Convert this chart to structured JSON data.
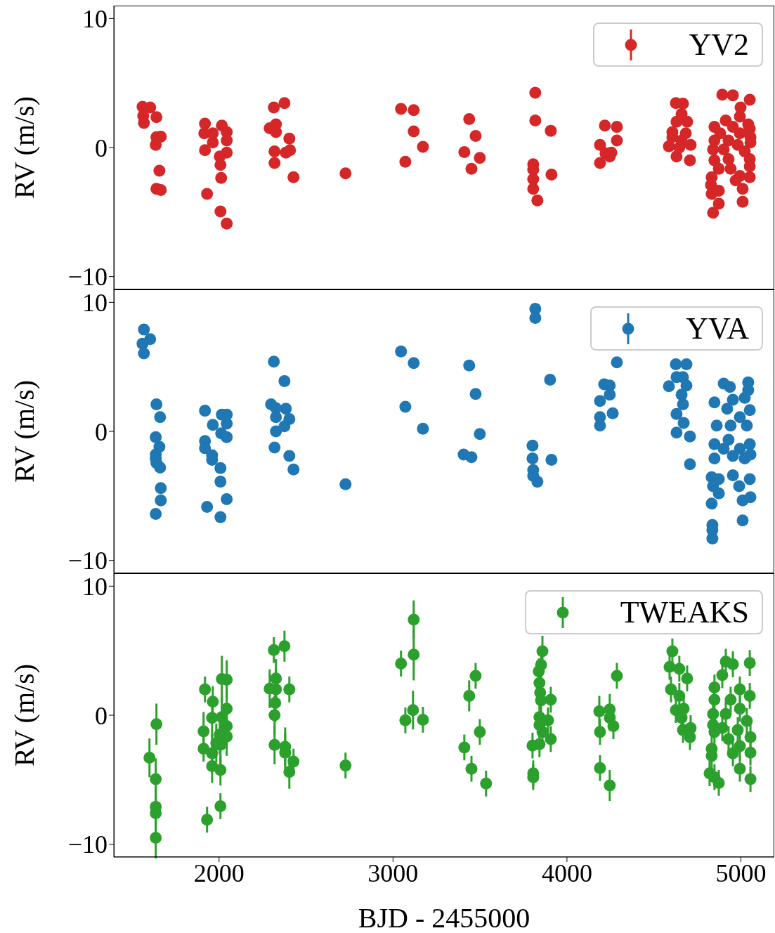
{
  "chart_data": [
    {
      "type": "scatter",
      "ylabel": "RV (m/s)",
      "xlim": [
        1395,
        5192
      ],
      "xticks": [
        2000,
        3000,
        4000,
        5000
      ],
      "ylim": [
        -11,
        11
      ],
      "yticks": [
        -10,
        0,
        10
      ],
      "tick_labels": "y",
      "legend": "top right",
      "marker": "circle",
      "series": [
        {
          "name": "YV2",
          "color": "#d62728",
          "x": [
            1560,
            1604,
            1564,
            1568,
            1640,
            1640,
            1665,
            1636,
            1657,
            1640,
            1665,
            1919,
            1915,
            1919,
            1964,
            1964,
            2016,
            2044,
            2044,
            2044,
            2004,
            2008,
            2012,
            1931,
            2008,
            2044,
            2315,
            2376,
            2327,
            2291,
            2327,
            2404,
            2319,
            2384,
            2408,
            2319,
            2428,
            2727,
            3046,
            3119,
            3119,
            3172,
            3071,
            3438,
            3475,
            3410,
            3499,
            3451,
            3818,
            3818,
            3907,
            3806,
            3806,
            3806,
            3806,
            3830,
            3911,
            4218,
            4287,
            4287,
            4190,
            4255,
            4222,
            4246,
            4190,
            4626,
            4667,
            4659,
            4630,
            4691,
            4606,
            4683,
            4606,
            4659,
            4586,
            4711,
            4646,
            4630,
            4707,
            4893,
            4954,
            5051,
            4998,
            4994,
            4913,
            4848,
            5042,
            4954,
            5051,
            5055,
            4881,
            4994,
            4848,
            4929,
            5055,
            4982,
            4840,
            4901,
            5022,
            4848,
            4929,
            5051,
            4873,
            4941,
            5051,
            4832,
            4994,
            5051,
            4828,
            4970,
            4873,
            5010,
            4832,
            4873,
            5010,
            4840
          ],
          "values": [
            3.16,
            3.1,
            2.45,
            1.9,
            2.35,
            0.8,
            0.85,
            0.2,
            -1.8,
            -3.2,
            -3.3,
            1.85,
            1.1,
            -0.2,
            1.1,
            0.4,
            1.7,
            1.2,
            0.55,
            -0.4,
            -0.7,
            -1.35,
            -2.35,
            -3.6,
            -4.95,
            -5.9,
            3.1,
            3.45,
            1.8,
            1.5,
            1.2,
            0.7,
            -0.3,
            -0.4,
            -0.2,
            -1.2,
            -2.3,
            -2.0,
            3.0,
            2.9,
            1.25,
            0.05,
            -1.1,
            2.2,
            0.9,
            -0.35,
            -0.8,
            -1.65,
            4.25,
            2.1,
            1.3,
            -1.3,
            -1.7,
            -2.45,
            -3.2,
            -4.1,
            -2.1,
            1.7,
            1.6,
            0.55,
            0.2,
            -0.4,
            -0.45,
            -0.7,
            -1.2,
            3.45,
            3.4,
            2.6,
            2.0,
            2.0,
            1.2,
            1.1,
            0.8,
            0.55,
            0.1,
            0.2,
            0.0,
            -0.7,
            -1.0,
            4.1,
            4.05,
            3.7,
            3.1,
            2.4,
            2.1,
            1.6,
            1.8,
            1.6,
            1.45,
            0.8,
            1.1,
            1.1,
            0.55,
            0.55,
            0.4,
            0.2,
            -0.15,
            -0.15,
            -0.3,
            -1.0,
            -0.9,
            -0.9,
            -1.65,
            -1.65,
            -1.45,
            -2.3,
            -2.2,
            -2.3,
            -2.9,
            -2.55,
            -3.35,
            -3.2,
            -3.6,
            -4.35,
            -4.2,
            -5.05
          ]
        }
      ]
    },
    {
      "type": "scatter",
      "ylabel": "RV (m/s)",
      "xlim": [
        1395,
        5192
      ],
      "xticks": [
        2000,
        3000,
        4000,
        5000
      ],
      "ylim": [
        -11,
        11
      ],
      "yticks": [
        -10,
        0,
        10
      ],
      "tick_labels": "y",
      "legend": "top right",
      "marker": "circle",
      "series": [
        {
          "name": "YVA",
          "color": "#1f77b4",
          "x": [
            1568,
            1604,
            1560,
            1568,
            1640,
            1661,
            1636,
            1657,
            1636,
            1636,
            1640,
            1661,
            1665,
            1665,
            1636,
            1919,
            1964,
            2016,
            2044,
            2044,
            2012,
            2044,
            1919,
            1919,
            1960,
            1960,
            2008,
            2008,
            2044,
            1931,
            2008,
            2315,
            2376,
            2299,
            2327,
            2384,
            2327,
            2404,
            2376,
            2327,
            2319,
            2404,
            2428,
            2727,
            3046,
            3119,
            3071,
            3172,
            3438,
            3475,
            3903,
            3499,
            3406,
            3451,
            3818,
            3818,
            3802,
            3802,
            3806,
            3806,
            3830,
            3911,
            4214,
            4246,
            4246,
            4190,
            4263,
            4190,
            4190,
            4287,
            4626,
            4687,
            4630,
            4667,
            4586,
            4687,
            4659,
            4667,
            4630,
            4671,
            4630,
            4707,
            4707,
            4901,
            4937,
            5042,
            5042,
            4848,
            4954,
            5022,
            4921,
            5051,
            4994,
            4861,
            4941,
            5034,
            4848,
            4929,
            5051,
            4901,
            4994,
            5055,
            4848,
            4954,
            5022,
            4954,
            4832,
            4873,
            5051,
            4840,
            4990,
            4873,
            5055,
            5010,
            4832,
            5010,
            4836,
            4836,
            4836
          ],
          "values": [
            7.9,
            7.15,
            6.8,
            6.05,
            2.1,
            1.1,
            -0.45,
            -1.2,
            -1.8,
            -2.1,
            -2.45,
            -2.8,
            -4.4,
            -5.35,
            -6.4,
            1.6,
            0.5,
            1.3,
            1.3,
            0.6,
            -0.15,
            -0.45,
            -0.75,
            -1.3,
            -1.85,
            -2.2,
            -2.85,
            -3.9,
            -5.25,
            -5.85,
            -6.65,
            5.4,
            3.9,
            2.1,
            1.8,
            1.75,
            1.1,
            0.95,
            0.4,
            0.0,
            -1.25,
            -1.9,
            -2.95,
            -4.1,
            6.2,
            5.3,
            1.9,
            0.2,
            5.1,
            2.9,
            4.0,
            -0.2,
            -1.8,
            -2.0,
            9.5,
            8.8,
            -1.1,
            -2.1,
            -3.0,
            -3.45,
            -3.9,
            -2.2,
            3.65,
            3.55,
            2.85,
            2.35,
            1.4,
            1.1,
            0.45,
            5.35,
            5.2,
            5.2,
            4.2,
            4.2,
            3.5,
            3.55,
            2.85,
            2.1,
            1.35,
            0.65,
            -0.1,
            -0.4,
            -2.55,
            3.7,
            3.45,
            3.8,
            3.2,
            2.25,
            2.45,
            2.6,
            1.75,
            1.65,
            1.1,
            0.45,
            0.45,
            0.45,
            -1.0,
            -0.65,
            -1.0,
            -1.35,
            -1.35,
            -1.8,
            -2.1,
            -1.9,
            -2.1,
            -3.4,
            -3.55,
            -3.7,
            -3.7,
            -4.25,
            -4.25,
            -4.8,
            -5.1,
            -5.35,
            -5.6,
            -6.9,
            -7.25,
            -7.65,
            -8.3
          ]
        }
      ]
    },
    {
      "type": "scatter",
      "xlabel": "BJD - 2455000",
      "ylabel": "RV (m/s)",
      "xlim": [
        1395,
        5192
      ],
      "xticks": [
        2000,
        3000,
        4000,
        5000
      ],
      "ylim": [
        -11,
        11
      ],
      "yticks": [
        -10,
        0,
        10
      ],
      "legend": "top right",
      "marker": "circle",
      "series": [
        {
          "name": "TWEAKS",
          "color": "#2ca02c",
          "x": [
            1640,
            1600,
            1636,
            1636,
            1636,
            1636,
            1919,
            1964,
            2016,
            2044,
            2044,
            1960,
            2016,
            2044,
            1911,
            2004,
            2044,
            1984,
            1911,
            1960,
            2008,
            1960,
            2008,
            2008,
            1931,
            2315,
            2376,
            2327,
            2291,
            2327,
            2404,
            2323,
            2319,
            2319,
            2380,
            2380,
            2428,
            2404,
            2727,
            3119,
            3046,
            3119,
            3115,
            3071,
            3172,
            3475,
            3438,
            3499,
            3410,
            3451,
            3535,
            3859,
            3851,
            3838,
            3842,
            3846,
            3851,
            3907,
            3842,
            3842,
            3891,
            3859,
            3907,
            3802,
            3842,
            3806,
            3806,
            4287,
            4186,
            4246,
            4246,
            4267,
            4190,
            4190,
            4246,
            4590,
            4646,
            4691,
            4598,
            4646,
            4626,
            4671,
            4659,
            4711,
            4667,
            4707,
            4606,
            4913,
            5051,
            4954,
            4893,
            4848,
            4994,
            5051,
            4941,
            4848,
            4994,
            4840,
            4913,
            5034,
            4840,
            4893,
            4982,
            4848,
            5055,
            4929,
            4994,
            4832,
            5055,
            4832,
            4954,
            4820,
            4994,
            4848,
            4873,
            5055
          ],
          "values": [
            -0.7,
            -3.3,
            -4.95,
            -7.1,
            -7.6,
            -9.5,
            2.0,
            1.05,
            2.8,
            2.75,
            0.5,
            -0.2,
            -0.15,
            -0.85,
            -1.25,
            -1.5,
            -1.65,
            -2.15,
            -2.6,
            -2.95,
            -2.3,
            -3.95,
            -4.25,
            -7.05,
            -8.1,
            5.05,
            5.35,
            2.85,
            2.05,
            2.0,
            2.0,
            0.95,
            0.0,
            -2.3,
            -2.45,
            -2.9,
            -3.6,
            -4.4,
            -3.9,
            7.4,
            4.0,
            4.7,
            0.4,
            -0.4,
            -0.35,
            3.05,
            1.5,
            -1.3,
            -2.5,
            -4.15,
            -5.3,
            4.95,
            3.9,
            3.4,
            2.5,
            1.75,
            1.15,
            1.2,
            -0.15,
            -0.75,
            -0.4,
            -1.3,
            -1.85,
            -2.35,
            -2.25,
            -4.5,
            -4.8,
            3.05,
            0.3,
            0.45,
            -0.2,
            -0.85,
            -1.3,
            -4.1,
            -5.45,
            3.75,
            3.6,
            2.85,
            2.0,
            1.5,
            0.4,
            0.5,
            -0.2,
            -1.0,
            -1.15,
            -1.7,
            4.95,
            4.15,
            4.05,
            3.95,
            3.1,
            2.15,
            2.0,
            1.5,
            1.2,
            1.2,
            0.5,
            0.1,
            0.1,
            -0.45,
            -0.75,
            -1.0,
            -1.15,
            -1.3,
            -1.7,
            -1.85,
            -2.4,
            -2.6,
            -2.9,
            -3.15,
            -2.95,
            -4.5,
            -4.15,
            -4.8,
            -5.25,
            -4.95
          ],
          "errors": [
            1.6,
            1.5,
            1.6,
            1.5,
            1.5,
            1.6,
            1.0,
            1.2,
            1.8,
            1.5,
            1.5,
            1.5,
            1.5,
            1.5,
            1.5,
            1.5,
            1.5,
            1.5,
            1.0,
            1.5,
            1.5,
            1.3,
            1.2,
            1.0,
            1.0,
            1.0,
            1.2,
            1.5,
            1.5,
            1.5,
            1.0,
            1.5,
            1.5,
            1.5,
            1.5,
            1.5,
            1.0,
            1.3,
            1.0,
            1.5,
            1.0,
            2.0,
            1.5,
            1.0,
            1.0,
            1.0,
            1.2,
            1.0,
            1.0,
            1.0,
            1.0,
            1.2,
            1.0,
            1.0,
            1.0,
            1.0,
            1.0,
            1.0,
            1.0,
            1.0,
            1.0,
            1.0,
            1.0,
            1.0,
            1.0,
            1.0,
            1.0,
            1.0,
            1.2,
            1.2,
            1.0,
            1.0,
            1.0,
            1.0,
            1.2,
            1.0,
            1.0,
            1.0,
            1.0,
            1.0,
            1.0,
            1.0,
            1.0,
            1.0,
            1.0,
            1.0,
            1.0,
            1.0,
            1.0,
            1.0,
            1.0,
            1.0,
            1.0,
            1.0,
            1.0,
            1.0,
            1.0,
            1.0,
            1.0,
            1.0,
            1.0,
            1.0,
            1.0,
            1.0,
            1.0,
            1.0,
            1.0,
            1.0,
            1.0,
            1.0,
            1.0,
            1.0,
            1.0,
            1.0,
            1.0,
            1.0
          ]
        }
      ]
    }
  ]
}
